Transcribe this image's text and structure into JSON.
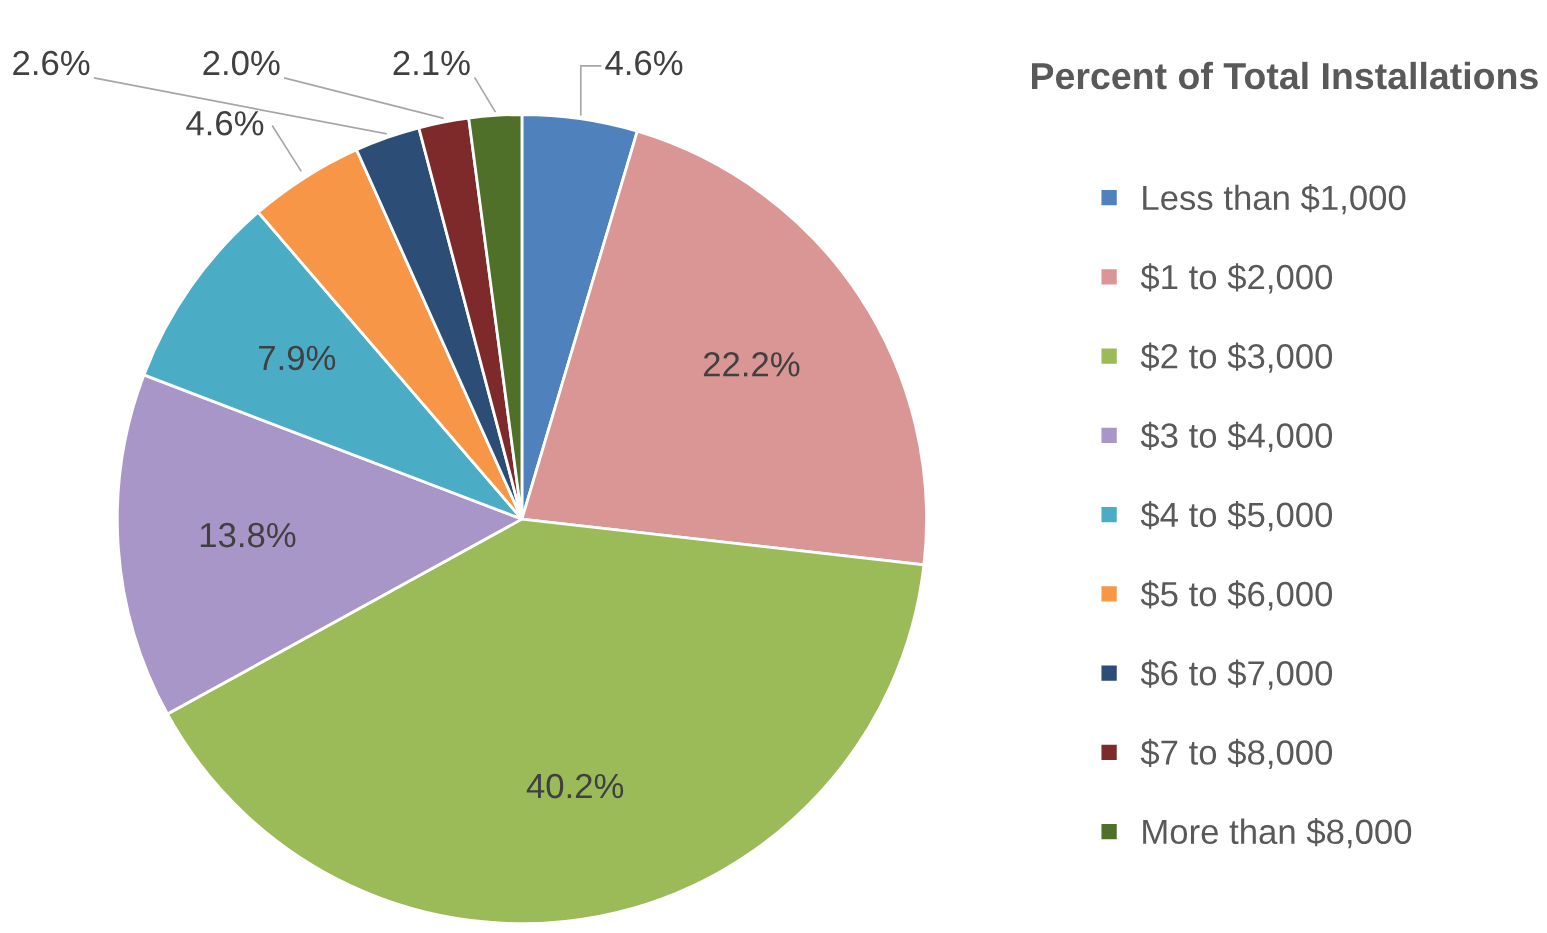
{
  "chart_data": {
    "type": "pie",
    "title": "Percent of Total Installations",
    "categories": [
      "Less than $1,000",
      "$1 to $2,000",
      "$2 to $3,000",
      "$3 to $4,000",
      "$4 to $5,000",
      "$5 to $6,000",
      "$6 to $7,000",
      "$7 to $8,000",
      "More than $8,000"
    ],
    "values": [
      4.6,
      22.2,
      40.2,
      13.8,
      7.9,
      4.6,
      2.6,
      2.0,
      2.1
    ],
    "value_labels": [
      "4.6%",
      "22.2%",
      "40.2%",
      "13.8%",
      "7.9%",
      "4.6%",
      "2.6%",
      "2.0%",
      "2.1%"
    ],
    "colors": [
      "#4f81bd",
      "#d99694",
      "#9bbb59",
      "#a996c8",
      "#4bacc6",
      "#f79646",
      "#2c4d75",
      "#7f2a2a",
      "#4f7028"
    ],
    "legend": "right"
  }
}
